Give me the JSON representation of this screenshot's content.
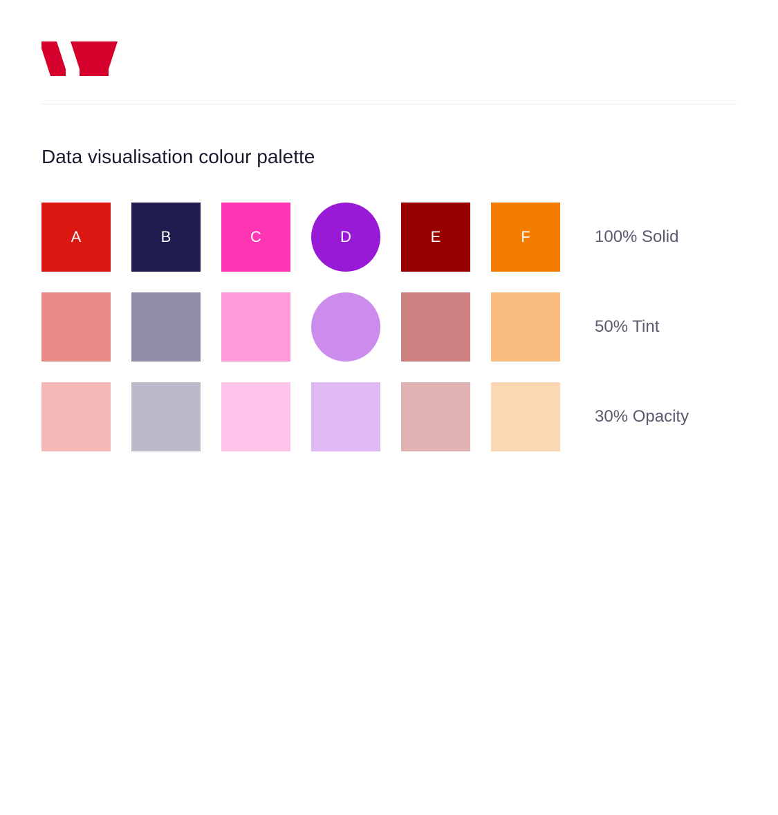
{
  "logo": {
    "color": "#d5002b",
    "width": 110,
    "height": 50
  },
  "title": "Data visualisation colour palette",
  "text_colors": {
    "title": "#1a1a2e",
    "row_label": "#5a5a6e",
    "swatch_letter": "#ffffff"
  },
  "divider_color": "#e5e5e5",
  "swatch_size": 100,
  "swatch_gap": 30,
  "columns": [
    {
      "id": "A",
      "shape": "square"
    },
    {
      "id": "B",
      "shape": "square"
    },
    {
      "id": "C",
      "shape": "square"
    },
    {
      "id": "D",
      "shape": "circle"
    },
    {
      "id": "E",
      "shape": "square"
    },
    {
      "id": "F",
      "shape": "square"
    }
  ],
  "rows": [
    {
      "label": "100% Solid",
      "show_letters": true,
      "opacity": 1.0,
      "use_shape": true,
      "colors": [
        "#da1710",
        "#1f1c4f",
        "#ff35b4",
        "#991ad6",
        "#990000",
        "#f37b00"
      ]
    },
    {
      "label": "50% Tint",
      "show_letters": false,
      "opacity": 1.0,
      "use_shape": true,
      "colors": [
        "#e88b87",
        "#8f8da7",
        "#ff9ad9",
        "#cc8ceb",
        "#cc8080",
        "#f9bd80"
      ]
    },
    {
      "label": "30% Opacity",
      "show_letters": false,
      "opacity": 0.3,
      "use_shape": false,
      "colors": [
        "#da1710",
        "#1f1c4f",
        "#ff35b4",
        "#991ad6",
        "#990000",
        "#f37b00"
      ]
    }
  ]
}
